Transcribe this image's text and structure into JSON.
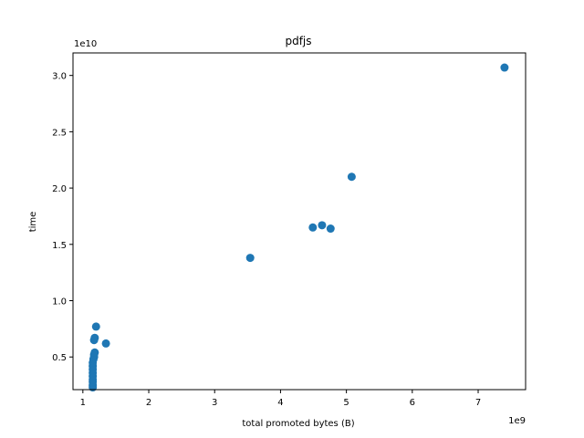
{
  "chart_data": {
    "type": "scatter",
    "title": "pdfjs",
    "xlabel": "total promoted bytes (B)",
    "ylabel": "time",
    "x_offset_label": "1e9",
    "y_offset_label": "1e10",
    "x_scale": 1000000000,
    "y_scale": 10000000000,
    "xlim": [
      0.85,
      7.72
    ],
    "ylim": [
      0.21,
      3.2
    ],
    "x_ticks": [
      1,
      2,
      3,
      4,
      5,
      6,
      7
    ],
    "x_tick_labels": [
      "1",
      "2",
      "3",
      "4",
      "5",
      "6",
      "7"
    ],
    "y_ticks": [
      0.5,
      1.0,
      1.5,
      2.0,
      2.5,
      3.0
    ],
    "y_tick_labels": [
      "0.5",
      "1.0",
      "1.5",
      "2.0",
      "2.5",
      "3.0"
    ],
    "grid": false,
    "marker_color": "#1f77b4",
    "series": [
      {
        "x": [
          1.15,
          1.15,
          1.15,
          1.15,
          1.15,
          1.15,
          1.15,
          1.15,
          1.15,
          1.16,
          1.17,
          1.17,
          1.18,
          1.17,
          1.18,
          1.2,
          1.35,
          3.54,
          4.49,
          4.63,
          4.76,
          5.08,
          7.4
        ],
        "y": [
          0.23,
          0.25,
          0.28,
          0.3,
          0.33,
          0.36,
          0.39,
          0.42,
          0.45,
          0.48,
          0.5,
          0.52,
          0.54,
          0.65,
          0.67,
          0.77,
          0.62,
          1.38,
          1.65,
          1.67,
          1.64,
          2.1,
          3.07
        ]
      }
    ]
  }
}
